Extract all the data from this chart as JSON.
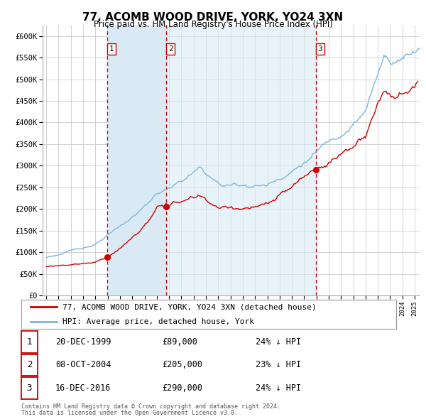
{
  "title": "77, ACOMB WOOD DRIVE, YORK, YO24 3XN",
  "subtitle": "Price paid vs. HM Land Registry's House Price Index (HPI)",
  "hpi_color": "#7cb8dd",
  "price_color": "#cc0000",
  "vline_color": "#cc0000",
  "shade_color": "#daeaf5",
  "background_color": "#ffffff",
  "grid_color": "#cccccc",
  "yticks": [
    0,
    50000,
    100000,
    150000,
    200000,
    250000,
    300000,
    350000,
    400000,
    450000,
    500000,
    550000,
    600000
  ],
  "xlim_start": 1994.7,
  "xlim_end": 2025.4,
  "transactions": [
    {
      "label": "1",
      "date": 1999.97,
      "price": 89000
    },
    {
      "label": "2",
      "date": 2004.78,
      "price": 205000
    },
    {
      "label": "3",
      "date": 2016.96,
      "price": 290000
    }
  ],
  "table_rows": [
    {
      "num": "1",
      "date_str": "20-DEC-1999",
      "price_str": "£89,000",
      "pct_str": "24% ↓ HPI"
    },
    {
      "num": "2",
      "date_str": "08-OCT-2004",
      "price_str": "£205,000",
      "pct_str": "23% ↓ HPI"
    },
    {
      "num": "3",
      "date_str": "16-DEC-2016",
      "price_str": "£290,000",
      "pct_str": "24% ↓ HPI"
    }
  ],
  "legend_entries": [
    "77, ACOMB WOOD DRIVE, YORK, YO24 3XN (detached house)",
    "HPI: Average price, detached house, York"
  ],
  "footer_line1": "Contains HM Land Registry data © Crown copyright and database right 2024.",
  "footer_line2": "This data is licensed under the Open Government Licence v3.0."
}
